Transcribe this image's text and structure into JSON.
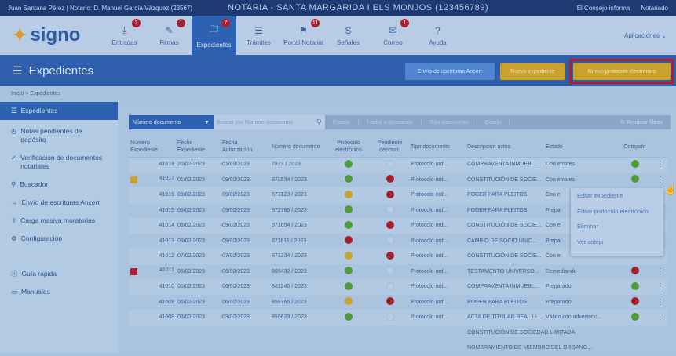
{
  "topbar": {
    "user": "Juan Santana Pérez | Notario: D. Manuel García Vázquez (23567)",
    "notaria": "NOTARIA - SANTA MARGARIDA I ELS MONJOS (123456789)",
    "links": [
      "El Consejo informa",
      "Notariado"
    ]
  },
  "nav": {
    "logo": "signo",
    "tabs": [
      {
        "label": "Entradas",
        "icon": "download-icon",
        "badge": "2"
      },
      {
        "label": "Firmas",
        "icon": "pen-icon",
        "badge": "1"
      },
      {
        "label": "Expedientes",
        "icon": "folder-icon",
        "badge": "7",
        "active": true
      },
      {
        "label": "Trámites",
        "icon": "list-icon"
      },
      {
        "label": "Portal Notarial",
        "icon": "flag-icon",
        "badge": "11"
      },
      {
        "label": "Señales",
        "icon": "s-icon"
      },
      {
        "label": "Correo",
        "icon": "mail-icon",
        "badge": "1"
      },
      {
        "label": "Ayuda",
        "icon": "help-icon"
      }
    ],
    "apps": "Aplicaciones"
  },
  "header": {
    "title": "Expedientes",
    "buttons": {
      "ancert": "Envío de escrituras Ancert",
      "nuevo_expediente": "Nuevo expediente",
      "nuevo_protocolo": "Nuevo protocolo electrónico"
    }
  },
  "breadcrumb": [
    "Inicio",
    "Expedientes"
  ],
  "sidebar": [
    "Expedientes",
    "Notas pendientes de depósito",
    "Verificación de documentos notariales",
    "Buscador",
    "Envío de escrituras Ancert",
    "Carga masiva moratorias",
    "Configuración",
    "Guía rápida",
    "Manuales"
  ],
  "filters": {
    "select": "Número documento",
    "placeholder": "Buscar por Número documento",
    "chips": [
      "Estado",
      "Fecha autorización",
      "Tipo documento",
      "Cotejo"
    ],
    "reset": "Reiniciar filtros"
  },
  "table": {
    "headers": [
      "Número Expediente",
      "Fecha Expediente",
      "Fecha Autorización",
      "Número documento",
      "Protocolo electrónico",
      "Pendiente depósito",
      "Tipo documento",
      "Descripción actos",
      "Estado",
      "Cotejado"
    ],
    "rows": [
      [
        "41018",
        "20/02/2023",
        "01/03/2023",
        "7873 / 2023",
        "g",
        "e",
        "Protocolo ord...",
        "COMPRAVENTA INMUEBL...",
        "Con errores",
        "g",
        ""
      ],
      [
        "41017",
        "01/02/2023",
        "09/02/2023",
        "873534 / 2023",
        "g",
        "rd",
        "Protocolo ord...",
        "CONSTITUCIÓN DE SOCIE...",
        "Con errores",
        "g",
        "y"
      ],
      [
        "41016",
        "09/02/2023",
        "09/02/2023",
        "873123 / 2023",
        "y",
        "rd",
        "Protocolo ord...",
        "PODER PARA PLEITOS",
        "Con e",
        "",
        ""
      ],
      [
        "41015",
        "09/02/2023",
        "09/02/2023",
        "872765 / 2023",
        "g",
        "e",
        "Protocolo ord...",
        "PODER PARA PLEITOS",
        "Prepa",
        "",
        ""
      ],
      [
        "41014",
        "09/02/2023",
        "09/02/2023",
        "871654 / 2023",
        "g",
        "rd",
        "Protocolo ord...",
        "CONSTITUCIÓN DE SOCIE...",
        "Con e",
        "",
        ""
      ],
      [
        "41013",
        "09/02/2023",
        "09/02/2023",
        "871611 / 2023",
        "rd",
        "e",
        "Protocolo ord...",
        "CAMBIO DE SOCIO ÚNIC...",
        "Prepa",
        "",
        ""
      ],
      [
        "41012",
        "07/02/2023",
        "07/02/2023",
        "871234 / 2023",
        "y",
        "rd",
        "Protocolo ord...",
        "CONSTITUCIÓN DE SOCIE...",
        "Con e",
        "",
        ""
      ],
      [
        "41011",
        "06/02/2023",
        "06/02/2023",
        "865432 / 2023",
        "g",
        "e",
        "Protocolo ord...",
        "TESTAMENTO UNIVERSO...",
        "Remediando",
        "rd",
        "r"
      ],
      [
        "41010",
        "06/02/2023",
        "06/02/2023",
        "861245 / 2023",
        "g",
        "e",
        "Protocolo ord...",
        "COMPRAVENTA INMUEBL...",
        "Preparado",
        "g",
        ""
      ],
      [
        "41009",
        "06/02/2023",
        "06/02/2023",
        "859765 / 2023",
        "y",
        "rd",
        "Protocolo ord...",
        "PODER PARA PLEITOS",
        "Preparado",
        "rd",
        ""
      ],
      [
        "41008",
        "03/02/2023",
        "03/02/2023",
        "859623 / 2023",
        "g",
        "e",
        "Protocolo ord...",
        "ACTA DE TITULAR REAL LL...",
        "Válido con advertenc...",
        "g",
        ""
      ]
    ],
    "extra": [
      "CONSTITUCIÓN DE SOCIEDAD LIMITADA",
      "NOMBRAMIENTO DE MIEMBRO DEL ÓRGANO..."
    ]
  },
  "context_menu": [
    "Editar expediente",
    "Editar protocolo electrónico",
    "Eliminar",
    "Ver cotejo"
  ],
  "colors": {
    "primary": "#2c62b1",
    "accent": "#c9a12f",
    "highlight": "#b01f2e"
  }
}
